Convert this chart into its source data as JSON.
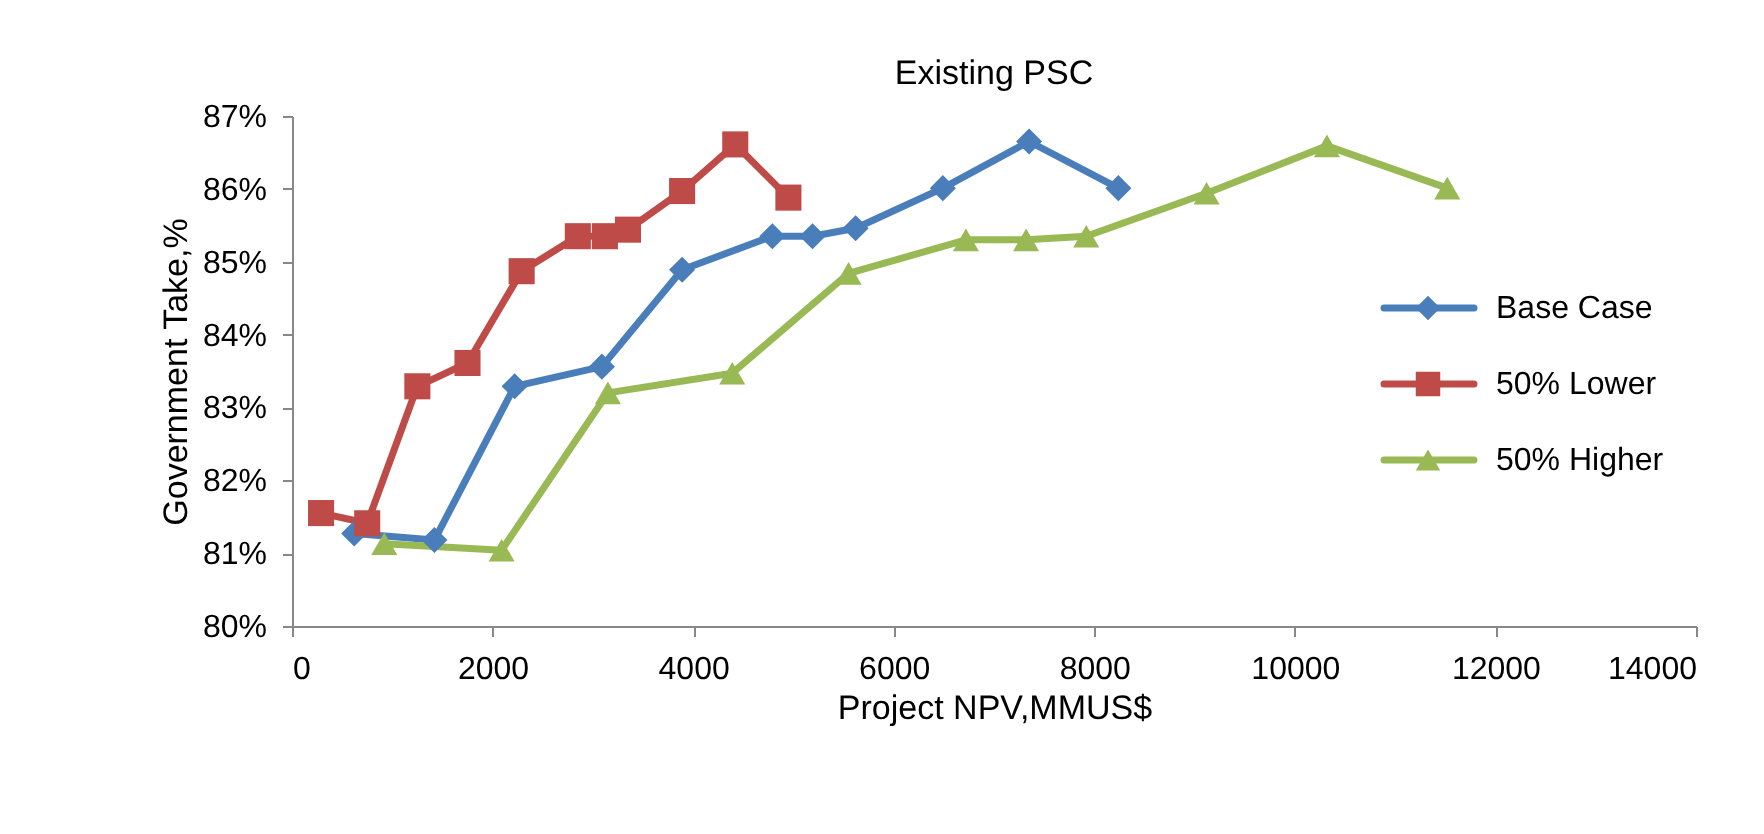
{
  "chart_data": {
    "type": "line",
    "title": "Existing PSC",
    "xlabel": "Project NPV,MMUS$",
    "ylabel": "Government Take,%",
    "xlim": [
      0,
      14000
    ],
    "xticks": [
      0,
      2000,
      4000,
      6000,
      8000,
      10000,
      12000,
      14000
    ],
    "ylim": [
      80,
      87
    ],
    "yticks": [
      {
        "value": 80,
        "label": "80%"
      },
      {
        "value": 81,
        "label": "81%"
      },
      {
        "value": 82,
        "label": "82%"
      },
      {
        "value": 83,
        "label": "83%"
      },
      {
        "value": 84,
        "label": "84%"
      },
      {
        "value": 85,
        "label": "85%"
      },
      {
        "value": 86,
        "label": "86%"
      },
      {
        "value": 87,
        "label": "87%"
      }
    ],
    "grid": false,
    "legend": "right",
    "line_style": "solid",
    "series": [
      {
        "name": "Base Case",
        "color": "#4a7ebb",
        "marker": "diamond",
        "x": [
          620,
          1420,
          2220,
          3090,
          3890,
          4790,
          5190,
          5620,
          6490,
          7350,
          8240
        ],
        "values": [
          81.27,
          81.18,
          83.29,
          83.56,
          84.89,
          85.35,
          85.35,
          85.46,
          86.01,
          86.65,
          86.01
        ]
      },
      {
        "name": "50% Lower",
        "color": "#be4b48",
        "marker": "square",
        "x": [
          290,
          750,
          1250,
          1750,
          2290,
          2850,
          3120,
          3350,
          3890,
          4420,
          4950
        ],
        "values": [
          81.55,
          81.41,
          83.29,
          83.61,
          84.87,
          85.35,
          85.35,
          85.44,
          85.97,
          86.61,
          85.88
        ]
      },
      {
        "name": "50% Higher",
        "color": "#98b954",
        "marker": "triangle",
        "x": [
          920,
          2090,
          3150,
          4390,
          5550,
          6720,
          7320,
          7920,
          9120,
          10320,
          11520
        ],
        "values": [
          81.13,
          81.04,
          83.2,
          83.47,
          84.84,
          85.3,
          85.3,
          85.35,
          85.94,
          86.59,
          86.01
        ]
      }
    ]
  }
}
